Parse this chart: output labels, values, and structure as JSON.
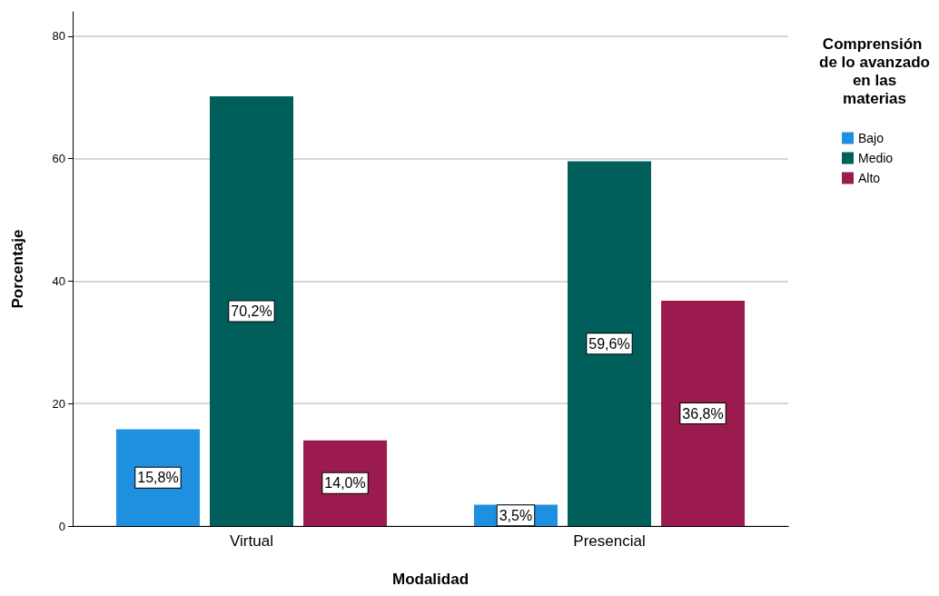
{
  "chart_data": {
    "type": "bar",
    "xlabel": "Modalidad",
    "ylabel": "Porcentaje",
    "legend_title": "Comprensión de lo avanzado en las materias",
    "categories": [
      "Virtual",
      "Presencial"
    ],
    "series": [
      {
        "name": "Bajo",
        "color": "#1f8fe0",
        "values": [
          15.8,
          3.5
        ],
        "value_labels": [
          "15,8%",
          "3,5%"
        ]
      },
      {
        "name": "Medio",
        "color": "#005f5a",
        "values": [
          70.2,
          59.6
        ],
        "value_labels": [
          "70,2%",
          "59,6%"
        ]
      },
      {
        "name": "Alto",
        "color": "#9b1b4e",
        "values": [
          14.0,
          36.8
        ],
        "value_labels": [
          "14,0%",
          "36,8%"
        ]
      }
    ],
    "ylim": [
      0,
      84
    ],
    "yticks": [
      0,
      20,
      40,
      60,
      80
    ],
    "grid": "y",
    "legend": "top right"
  }
}
